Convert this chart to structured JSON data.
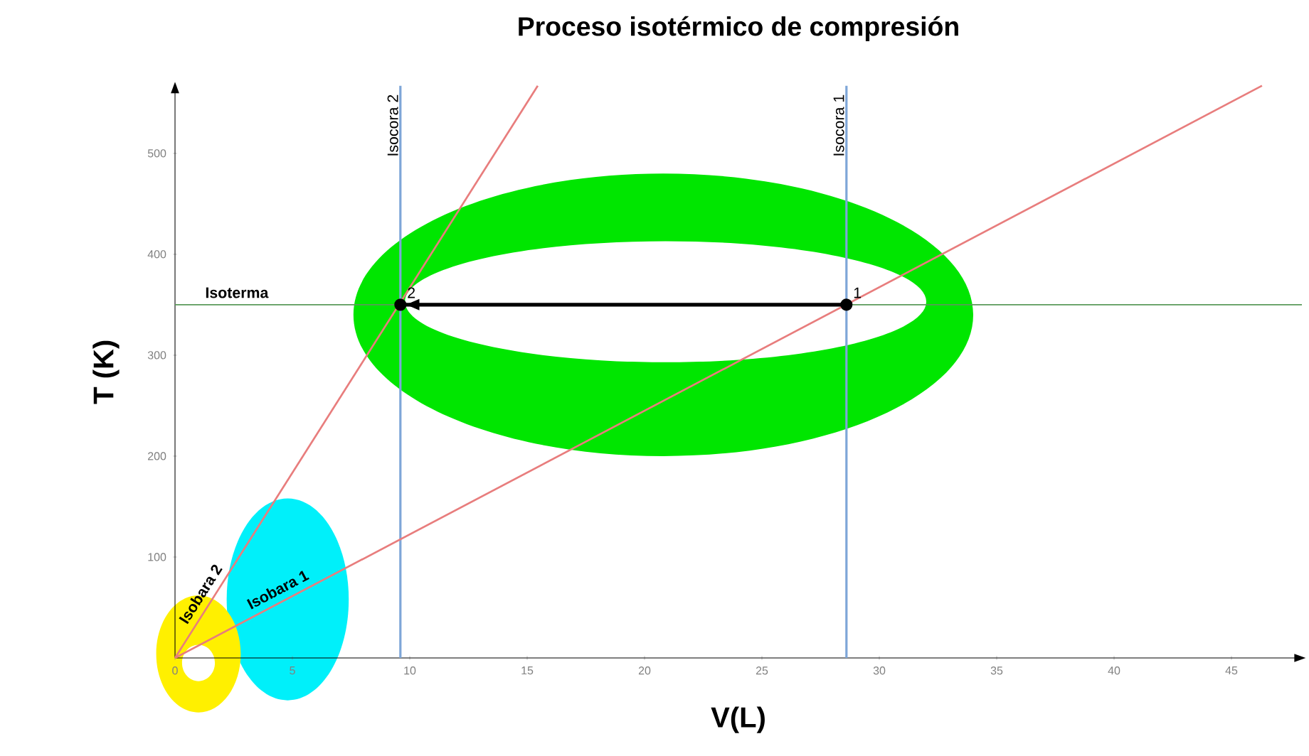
{
  "chart_data": {
    "type": "line",
    "title": "Proceso isotérmico de compresión",
    "xlabel": "V(L)",
    "ylabel": "T (K)",
    "xlim": [
      0,
      48
    ],
    "ylim": [
      0,
      567
    ],
    "xticks": [
      0,
      5,
      10,
      15,
      20,
      25,
      30,
      35,
      40,
      45
    ],
    "yticks": [
      100,
      200,
      300,
      400,
      500
    ],
    "grid": false,
    "series": [
      {
        "name": "Isobara 1",
        "color": "#e87d7d",
        "x": [
          0,
          46.3
        ],
        "values": [
          0,
          567
        ]
      },
      {
        "name": "Isobara 2",
        "color": "#e87d7d",
        "x": [
          0,
          15.45
        ],
        "values": [
          0,
          567
        ]
      },
      {
        "color": "#000000",
        "x": [
          28.6,
          9.6
        ],
        "values": [
          350,
          350
        ],
        "marker": "circle"
      }
    ],
    "ref_lines": [
      {
        "axis": "x",
        "value": 9.6,
        "label": "Isocora 2",
        "color": "#7ea6d8"
      },
      {
        "axis": "x",
        "value": 28.6,
        "label": "Isocora 1",
        "color": "#7ea6d8"
      },
      {
        "axis": "y",
        "value": 350,
        "label": "Isoterma",
        "color": "#5a9a5a"
      }
    ],
    "annotations": [
      {
        "text": "1",
        "x": 28.6,
        "y": 350
      },
      {
        "text": "2",
        "x": 9.6,
        "y": 350
      }
    ]
  }
}
